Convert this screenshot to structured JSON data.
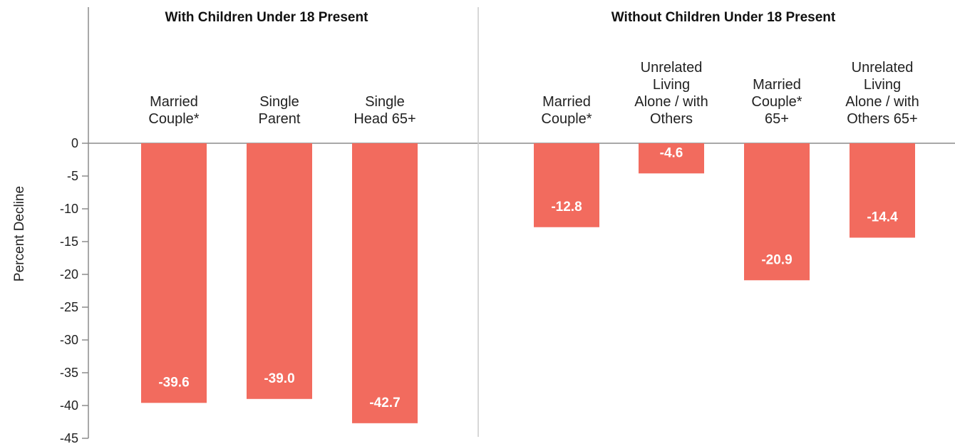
{
  "chart_data": {
    "type": "bar",
    "ylabel": "Percent Decline",
    "ylim": [
      -45,
      0
    ],
    "yticks": [
      0,
      -5,
      -10,
      -15,
      -20,
      -25,
      -30,
      -35,
      -40,
      -45
    ],
    "bar_color": "#f26b5e",
    "groups": [
      {
        "title": "With Children Under 18 Present",
        "categories": [
          [
            "Married",
            "Couple*"
          ],
          [
            "Single",
            "Parent"
          ],
          [
            "Single",
            "Head 65+"
          ]
        ],
        "values": [
          -39.6,
          -39.0,
          -42.7
        ],
        "value_labels": [
          "-39.6",
          "-39.0",
          "-42.7"
        ]
      },
      {
        "title": "Without Children Under 18 Present",
        "categories": [
          [
            "Married",
            "Couple*"
          ],
          [
            "Unrelated",
            "Living",
            "Alone / with",
            "Others"
          ],
          [
            "Married",
            "Couple*",
            "65+"
          ],
          [
            "Unrelated",
            "Living",
            "Alone / with",
            "Others 65+"
          ]
        ],
        "values": [
          -12.8,
          -4.6,
          -20.9,
          -14.4
        ],
        "value_labels": [
          "-12.8",
          "-4.6",
          "-20.9",
          "-14.4"
        ]
      }
    ]
  }
}
